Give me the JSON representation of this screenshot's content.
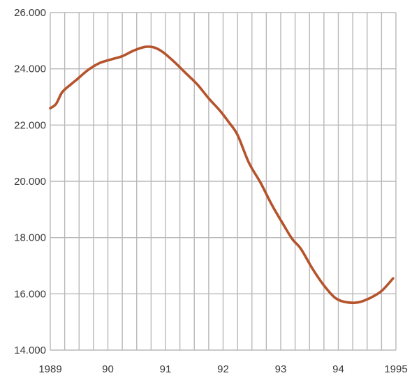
{
  "chart_data": {
    "type": "line",
    "title": "",
    "xlabel": "",
    "ylabel": "",
    "xlim": [
      1989,
      1995
    ],
    "ylim": [
      14000,
      26000
    ],
    "grid": true,
    "legend": "none",
    "x_ticks": [
      {
        "value": 1989,
        "label": "1989"
      },
      {
        "value": 1990,
        "label": "90"
      },
      {
        "value": 1991,
        "label": "91"
      },
      {
        "value": 1992,
        "label": "92"
      },
      {
        "value": 1993,
        "label": "93"
      },
      {
        "value": 1994,
        "label": "94"
      },
      {
        "value": 1995,
        "label": "1995"
      }
    ],
    "y_ticks": [
      {
        "value": 14000,
        "label": "14.000"
      },
      {
        "value": 16000,
        "label": "16.000"
      },
      {
        "value": 18000,
        "label": "18.000"
      },
      {
        "value": 20000,
        "label": "20.000"
      },
      {
        "value": 22000,
        "label": "22.000"
      },
      {
        "value": 24000,
        "label": "24.000"
      },
      {
        "value": 26000,
        "label": "26.000"
      }
    ],
    "series": [
      {
        "color": "#b5542c",
        "points": [
          {
            "x": 1989.0,
            "y": 22600
          },
          {
            "x": 1989.1,
            "y": 22750
          },
          {
            "x": 1989.2,
            "y": 23150
          },
          {
            "x": 1989.3,
            "y": 23350
          },
          {
            "x": 1989.45,
            "y": 23600
          },
          {
            "x": 1989.65,
            "y": 23950
          },
          {
            "x": 1989.85,
            "y": 24200
          },
          {
            "x": 1990.05,
            "y": 24330
          },
          {
            "x": 1990.25,
            "y": 24450
          },
          {
            "x": 1990.45,
            "y": 24650
          },
          {
            "x": 1990.65,
            "y": 24780
          },
          {
            "x": 1990.8,
            "y": 24760
          },
          {
            "x": 1990.95,
            "y": 24600
          },
          {
            "x": 1991.15,
            "y": 24250
          },
          {
            "x": 1991.35,
            "y": 23850
          },
          {
            "x": 1991.55,
            "y": 23450
          },
          {
            "x": 1991.75,
            "y": 22950
          },
          {
            "x": 1991.95,
            "y": 22500
          },
          {
            "x": 1992.1,
            "y": 22100
          },
          {
            "x": 1992.25,
            "y": 21650
          },
          {
            "x": 1992.45,
            "y": 20650
          },
          {
            "x": 1992.65,
            "y": 19950
          },
          {
            "x": 1992.85,
            "y": 19150
          },
          {
            "x": 1993.05,
            "y": 18450
          },
          {
            "x": 1993.2,
            "y": 17950
          },
          {
            "x": 1993.35,
            "y": 17600
          },
          {
            "x": 1993.55,
            "y": 16900
          },
          {
            "x": 1993.75,
            "y": 16300
          },
          {
            "x": 1993.95,
            "y": 15850
          },
          {
            "x": 1994.15,
            "y": 15700
          },
          {
            "x": 1994.35,
            "y": 15700
          },
          {
            "x": 1994.55,
            "y": 15850
          },
          {
            "x": 1994.75,
            "y": 16100
          },
          {
            "x": 1994.95,
            "y": 16550
          }
        ]
      }
    ]
  }
}
